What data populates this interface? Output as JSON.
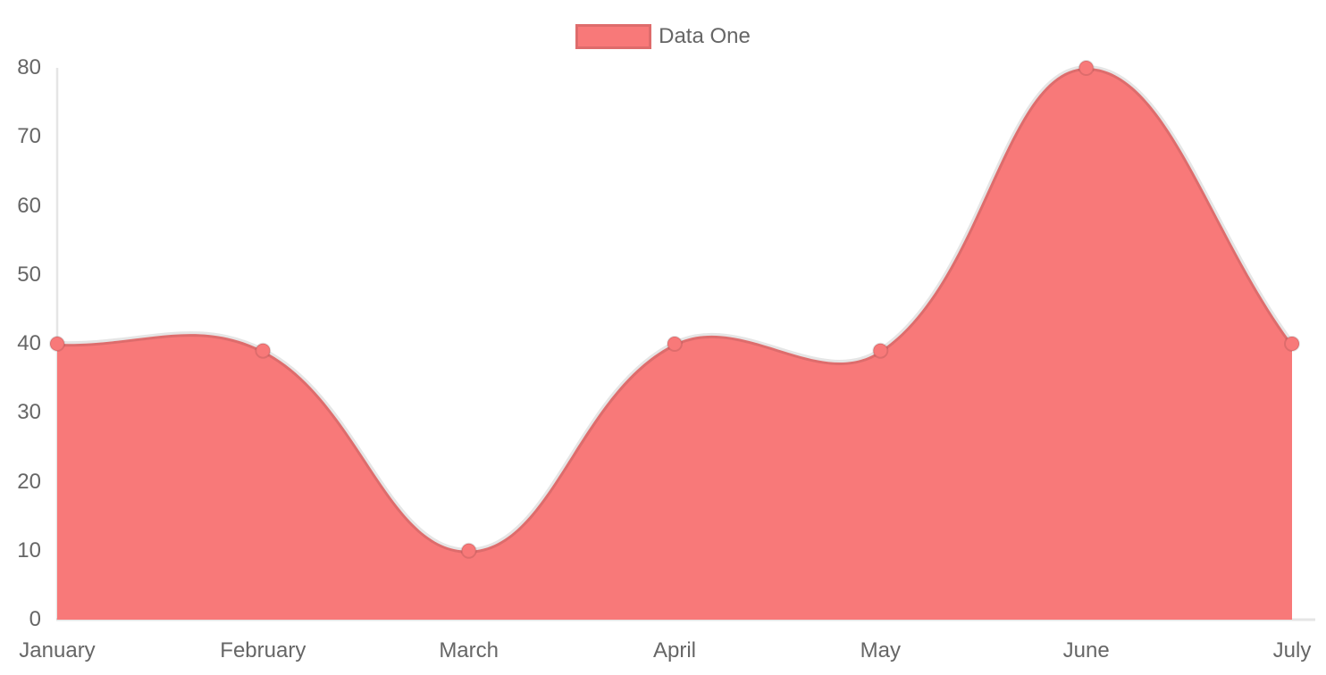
{
  "chart_data": {
    "type": "area",
    "title": "",
    "categories": [
      "January",
      "February",
      "March",
      "April",
      "May",
      "June",
      "July"
    ],
    "series": [
      {
        "name": "Data One",
        "values": [
          40,
          39,
          10,
          40,
          39,
          80,
          40
        ]
      }
    ],
    "xlabel": "",
    "ylabel": "",
    "ylim": [
      0,
      80
    ],
    "yticks": [
      0,
      10,
      20,
      30,
      40,
      50,
      60,
      70,
      80
    ],
    "line_tension": 0.4,
    "grid": false,
    "legend_position": "top",
    "legend": {
      "label": "Data One",
      "swatch_color": "#f87979"
    },
    "colors": {
      "area_fill": "#f87979",
      "line_stroke": "rgba(0,0,0,0.1)",
      "point_fill": "#f87979",
      "point_stroke": "rgba(0,0,0,0.1)",
      "axis_line": "rgba(0,0,0,0.1)",
      "tick_text": "#666666"
    }
  }
}
